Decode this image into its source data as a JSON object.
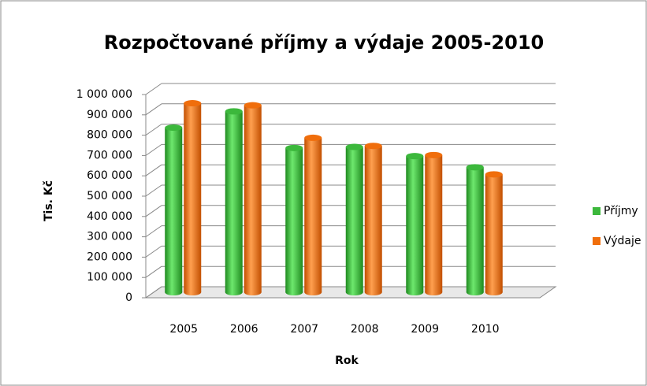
{
  "chart_data": {
    "type": "bar3d",
    "title": "Rozpočtované příjmy a výdaje 2005-2010",
    "x_label": "Rok",
    "y_label": "Tis. Kč",
    "categories": [
      "2005",
      "2006",
      "2007",
      "2008",
      "2009",
      "2010"
    ],
    "series": [
      {
        "name": "Příjmy",
        "color": "#3cb83c",
        "values": [
          810000,
          890000,
          710000,
          715000,
          670000,
          615000
        ]
      },
      {
        "name": "Výdaje",
        "color": "#f06e0c",
        "values": [
          930000,
          920000,
          760000,
          720000,
          675000,
          580000
        ]
      }
    ],
    "ylim": [
      0,
      1000000
    ],
    "yticks": [
      0,
      {
        "value": 100000,
        "label": "100 000"
      },
      {
        "value": 200000,
        "label": "200 000"
      },
      {
        "value": 300000,
        "label": "300 000"
      },
      {
        "value": 400000,
        "label": "400 000"
      },
      {
        "value": 500000,
        "label": "500 000"
      },
      {
        "value": 600000,
        "label": "600 000"
      },
      {
        "value": 700000,
        "label": "700 000"
      },
      {
        "value": 800000,
        "label": "800 000"
      },
      {
        "value": 900000,
        "label": "900 000"
      },
      {
        "value": 1000000,
        "label": "1 000 000"
      }
    ],
    "grid": true,
    "legend": "right"
  }
}
